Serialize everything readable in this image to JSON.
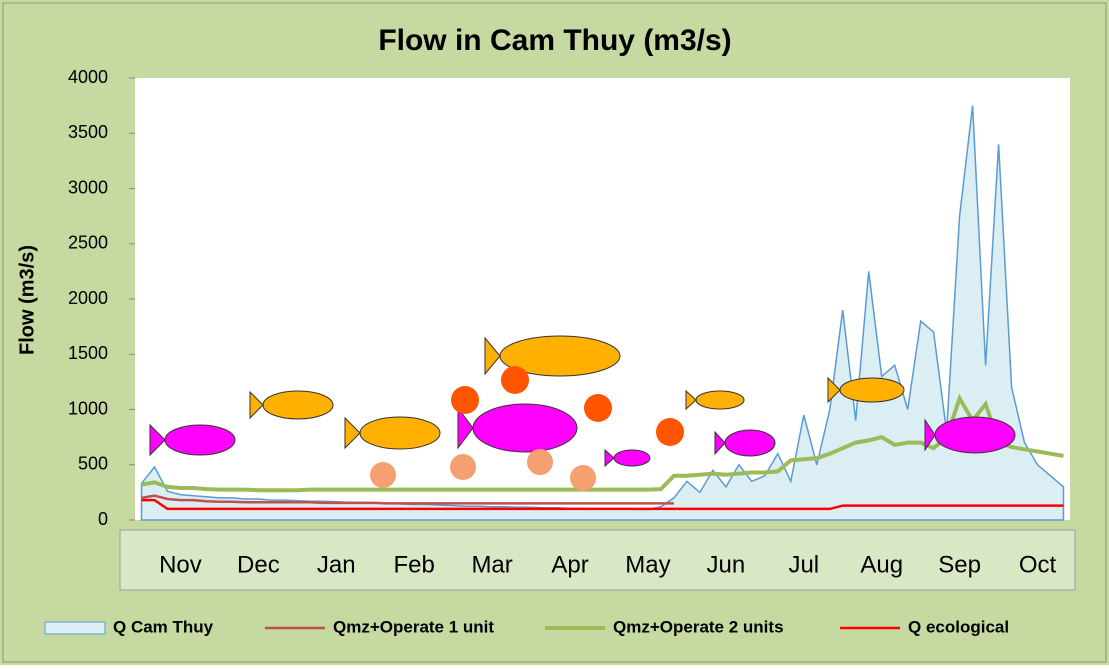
{
  "chart_data": {
    "type": "line",
    "title": "Flow in Cam Thuy (m3/s)",
    "y_label": "Flow (m3/s)",
    "categories": [
      null,
      null,
      null,
      "Nov",
      null,
      null,
      null,
      null,
      null,
      "Dec",
      null,
      null,
      null,
      null,
      null,
      "Jan",
      null,
      null,
      null,
      null,
      null,
      "Feb",
      null,
      null,
      null,
      null,
      null,
      "Mar",
      null,
      null,
      null,
      null,
      null,
      "Apr",
      null,
      null,
      null,
      null,
      null,
      "May",
      null,
      null,
      null,
      null,
      null,
      "Jun",
      null,
      null,
      null,
      null,
      null,
      "Jul",
      null,
      null,
      null,
      null,
      null,
      "Aug",
      null,
      null,
      null,
      null,
      null,
      "Sep",
      null,
      null,
      null,
      null,
      null,
      "Oct",
      null,
      null
    ],
    "ylim": [
      0,
      4000
    ],
    "yticks": [
      0,
      500,
      1000,
      1500,
      2000,
      2500,
      3000,
      3500,
      4000
    ],
    "grid": false,
    "series": [
      {
        "name": "Q Cam Thuy",
        "color": "#5b9bd5",
        "fill": "#dbeef4",
        "style": "area",
        "values": [
          330,
          480,
          260,
          230,
          220,
          210,
          200,
          200,
          190,
          190,
          180,
          180,
          175,
          170,
          170,
          165,
          160,
          160,
          150,
          150,
          145,
          140,
          140,
          135,
          130,
          125,
          125,
          120,
          120,
          115,
          115,
          110,
          110,
          105,
          105,
          100,
          100,
          100,
          95,
          95,
          120,
          200,
          350,
          250,
          450,
          300,
          500,
          350,
          400,
          600,
          350,
          950,
          500,
          1000,
          1900,
          900,
          2250,
          1300,
          1400,
          1000,
          1800,
          1700,
          800,
          2750,
          3750,
          1400,
          3400,
          1200,
          700,
          500,
          400,
          300
        ]
      },
      {
        "name": "Qmz+Operate 1 unit",
        "color": "#c0504d",
        "style": "line",
        "values": [
          200,
          220,
          190,
          180,
          180,
          170,
          165,
          165,
          160,
          160,
          160,
          160,
          160,
          160,
          155,
          155,
          155,
          155,
          155,
          150,
          150,
          150,
          150,
          150,
          150,
          150,
          150,
          150,
          150,
          150,
          150,
          150,
          150,
          150,
          150,
          150,
          150,
          150,
          150,
          150,
          150,
          150,
          null,
          null,
          null,
          null,
          null,
          null,
          null,
          null,
          null,
          null,
          null,
          null,
          null,
          null,
          null,
          null,
          null,
          null,
          null,
          null,
          null,
          null,
          null,
          null,
          null,
          null,
          null,
          null,
          null,
          null
        ]
      },
      {
        "name": "Qmz+Operate 2 units",
        "color": "#9bbb59",
        "style": "line",
        "values": [
          320,
          340,
          300,
          290,
          290,
          280,
          275,
          275,
          275,
          270,
          270,
          270,
          270,
          275,
          275,
          275,
          275,
          275,
          275,
          275,
          275,
          275,
          275,
          275,
          275,
          275,
          275,
          275,
          275,
          275,
          275,
          275,
          275,
          275,
          275,
          275,
          275,
          275,
          275,
          275,
          280,
          400,
          400,
          410,
          420,
          410,
          420,
          430,
          430,
          440,
          540,
          550,
          560,
          600,
          650,
          700,
          720,
          750,
          680,
          700,
          700,
          650,
          750,
          1100,
          900,
          1050,
          700,
          660,
          640,
          620,
          600,
          580
        ]
      },
      {
        "name": "Q ecological",
        "color": "#ff0000",
        "style": "line",
        "values": [
          180,
          180,
          100,
          100,
          100,
          100,
          100,
          100,
          100,
          100,
          100,
          100,
          100,
          100,
          100,
          100,
          100,
          100,
          100,
          100,
          100,
          100,
          100,
          100,
          100,
          100,
          100,
          100,
          100,
          100,
          100,
          100,
          100,
          100,
          100,
          100,
          100,
          100,
          100,
          100,
          100,
          100,
          100,
          100,
          100,
          100,
          100,
          100,
          100,
          100,
          100,
          100,
          100,
          100,
          130,
          130,
          130,
          130,
          130,
          130,
          130,
          130,
          130,
          130,
          130,
          130,
          130,
          130,
          130,
          130,
          130,
          130
        ]
      }
    ]
  }
}
